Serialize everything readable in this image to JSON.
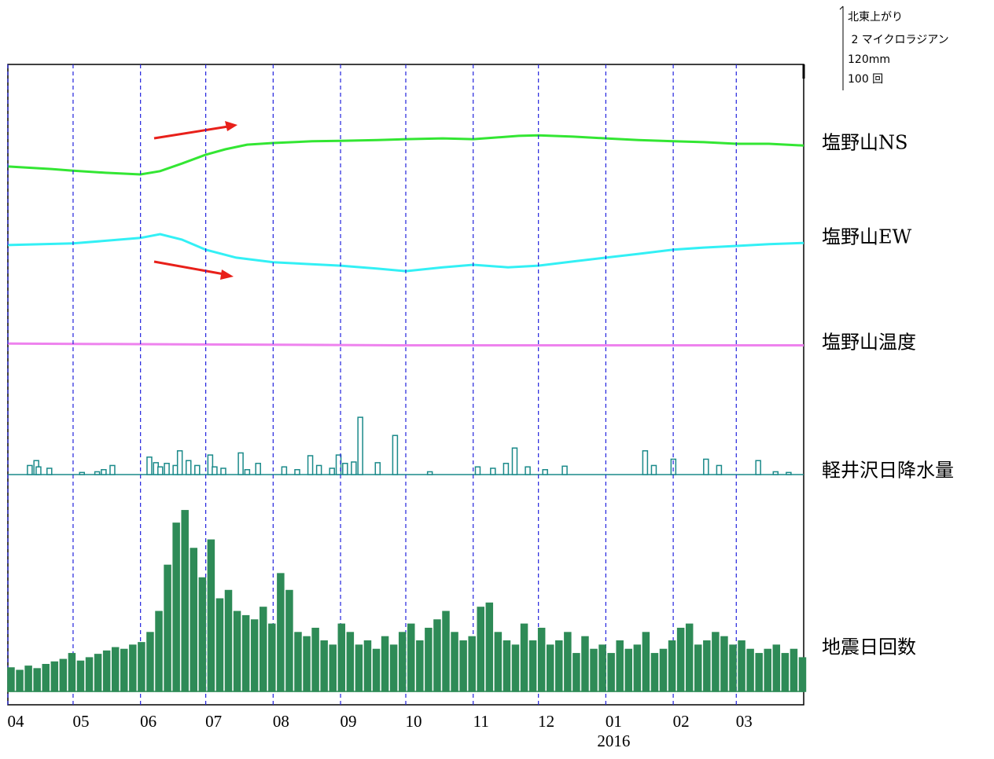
{
  "scale": {
    "direction": "北東上がり",
    "tilt": " 2 マイクロラジアン",
    "rain": "120mm",
    "quake": "100 回"
  },
  "chart_data": [
    {
      "type": "line",
      "name": "塩野山NS",
      "color": "#33e633",
      "xlim": [
        0,
        366
      ],
      "ylim": [
        0,
        3.33
      ],
      "x": [
        0,
        20,
        30,
        45,
        61,
        70,
        80,
        91,
        100,
        110,
        122,
        140,
        153,
        170,
        183,
        200,
        214,
        235,
        244,
        260,
        275,
        290,
        306,
        320,
        335,
        350,
        366
      ],
      "values": [
        0.9,
        0.84,
        0.8,
        0.75,
        0.71,
        0.79,
        0.97,
        1.18,
        1.31,
        1.42,
        1.46,
        1.5,
        1.51,
        1.53,
        1.55,
        1.57,
        1.55,
        1.63,
        1.64,
        1.61,
        1.57,
        1.53,
        1.5,
        1.48,
        1.44,
        1.44,
        1.4
      ]
    },
    {
      "type": "line",
      "name": "塩野山EW",
      "color": "#33f0f5",
      "xlim": [
        0,
        366
      ],
      "ylim": [
        0,
        2.43
      ],
      "x": [
        0,
        30,
        61,
        70,
        80,
        91,
        105,
        122,
        153,
        170,
        183,
        200,
        214,
        230,
        244,
        260,
        275,
        290,
        306,
        320,
        335,
        350,
        366
      ],
      "values": [
        1.46,
        1.5,
        1.63,
        1.72,
        1.59,
        1.35,
        1.16,
        1.05,
        0.97,
        0.9,
        0.84,
        0.93,
        0.99,
        0.93,
        0.97,
        1.07,
        1.16,
        1.25,
        1.35,
        1.4,
        1.44,
        1.48,
        1.51
      ]
    },
    {
      "type": "line",
      "name": "塩野山温度",
      "color": "#ee82ee",
      "xlim": [
        0,
        366
      ],
      "ylim": [
        0,
        10
      ],
      "x": [
        0,
        91,
        183,
        275,
        366
      ],
      "values": [
        5.7,
        5.6,
        5.5,
        5.5,
        5.5
      ]
    },
    {
      "type": "bar",
      "name": "軽井沢日降水量",
      "color": "#1a8a8a",
      "xlim": [
        0,
        366
      ],
      "ylim": [
        0,
        117
      ],
      "x": [
        9,
        12,
        13,
        18,
        33,
        40,
        43,
        47,
        64,
        67,
        69,
        72,
        76,
        78,
        82,
        86,
        92,
        94,
        98,
        106,
        109,
        114,
        126,
        132,
        138,
        142,
        148,
        151,
        154,
        158,
        161,
        169,
        177,
        193,
        215,
        222,
        228,
        232,
        238,
        246,
        255,
        292,
        296,
        305,
        320,
        326,
        344,
        352,
        358
      ],
      "values": [
        13,
        20,
        11,
        9,
        3,
        4,
        7,
        13,
        25,
        17,
        11,
        16,
        13,
        34,
        20,
        13,
        28,
        11,
        9,
        31,
        7,
        16,
        11,
        7,
        27,
        13,
        9,
        28,
        16,
        18,
        82,
        17,
        56,
        4,
        11,
        9,
        16,
        38,
        11,
        7,
        12,
        34,
        13,
        22,
        22,
        13,
        20,
        4,
        3
      ]
    },
    {
      "type": "bar",
      "name": "地震日回数",
      "color": "#2e8b57",
      "xlim": [
        0,
        366
      ],
      "ylim": [
        0,
        255
      ],
      "x": [
        0,
        4,
        8,
        12,
        16,
        20,
        24,
        28,
        32,
        36,
        40,
        44,
        48,
        52,
        56,
        60,
        64,
        68,
        72,
        76,
        80,
        84,
        88,
        92,
        96,
        100,
        104,
        108,
        112,
        116,
        120,
        124,
        128,
        132,
        136,
        140,
        144,
        148,
        152,
        156,
        160,
        164,
        168,
        172,
        176,
        180,
        184,
        188,
        192,
        196,
        200,
        204,
        208,
        212,
        216,
        220,
        224,
        228,
        232,
        236,
        240,
        244,
        248,
        252,
        256,
        260,
        264,
        268,
        272,
        276,
        280,
        284,
        288,
        292,
        296,
        300,
        304,
        308,
        312,
        316,
        320,
        324,
        328,
        332,
        336,
        340,
        344,
        348,
        352,
        356,
        360,
        364
      ],
      "values": [
        28,
        25,
        30,
        27,
        32,
        35,
        38,
        45,
        36,
        40,
        44,
        48,
        52,
        50,
        55,
        58,
        70,
        95,
        150,
        200,
        215,
        170,
        135,
        180,
        110,
        120,
        95,
        90,
        85,
        100,
        80,
        140,
        120,
        70,
        65,
        75,
        60,
        55,
        80,
        70,
        55,
        60,
        50,
        65,
        55,
        70,
        80,
        60,
        75,
        85,
        95,
        70,
        60,
        65,
        100,
        105,
        70,
        60,
        55,
        80,
        60,
        75,
        55,
        60,
        70,
        45,
        65,
        50,
        55,
        45,
        60,
        50,
        55,
        70,
        45,
        50,
        60,
        75,
        80,
        55,
        60,
        70,
        65,
        55,
        60,
        50,
        45,
        50,
        55,
        45,
        50,
        40
      ],
      "xticks": [
        {
          "value": 0,
          "label": "04"
        },
        {
          "value": 30,
          "label": "05"
        },
        {
          "value": 61,
          "label": "06"
        },
        {
          "value": 91,
          "label": "07"
        },
        {
          "value": 122,
          "label": "08"
        },
        {
          "value": 153,
          "label": "09"
        },
        {
          "value": 183,
          "label": "10"
        },
        {
          "value": 214,
          "label": "11"
        },
        {
          "value": 244,
          "label": "12"
        },
        {
          "value": 275,
          "label": "01"
        },
        {
          "value": 306,
          "label": "02"
        },
        {
          "value": 335,
          "label": "03"
        }
      ],
      "year_label": "2016",
      "year_tick": 9,
      "grid": true
    }
  ]
}
